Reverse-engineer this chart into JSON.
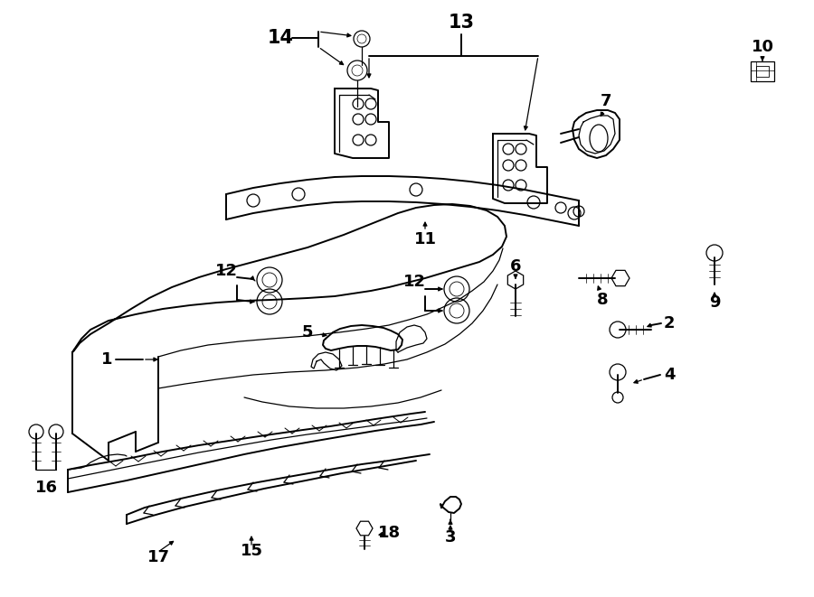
{
  "bg_color": "#ffffff",
  "line_color": "#000000",
  "fig_width": 9.0,
  "fig_height": 6.61,
  "dpi": 100,
  "lw_main": 1.4,
  "lw_thin": 0.9,
  "label_fontsize": 13
}
